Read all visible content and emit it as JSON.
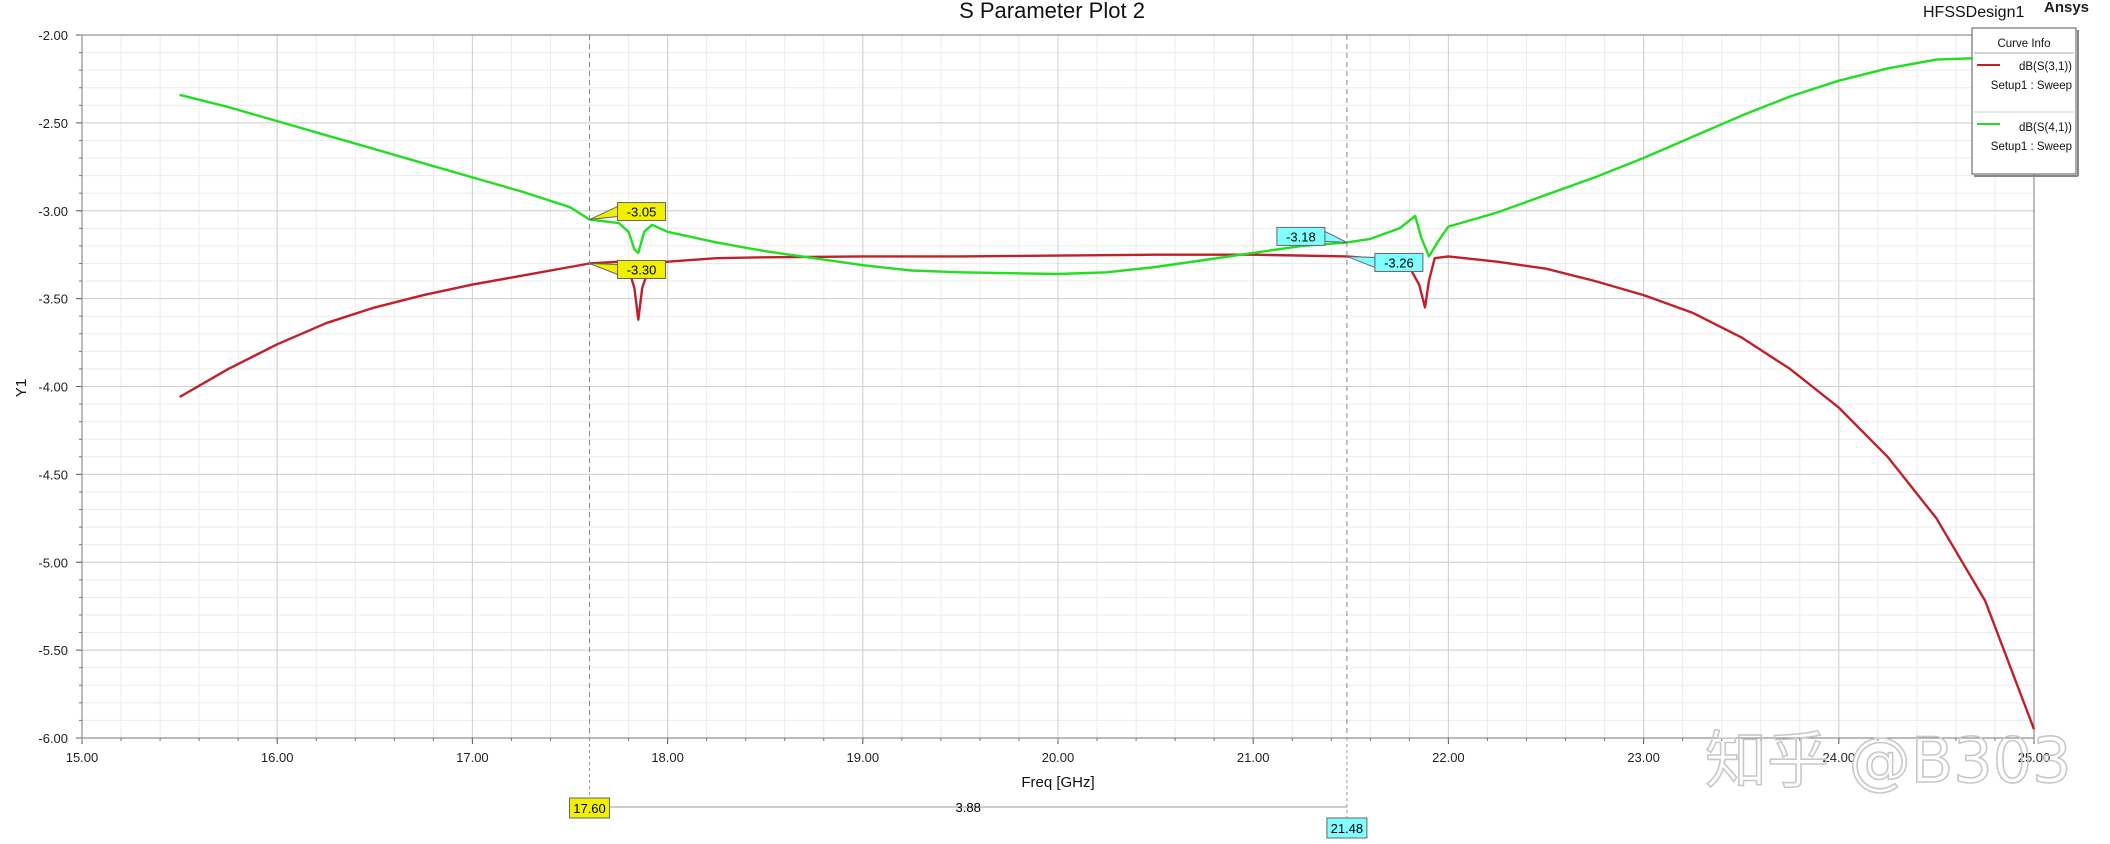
{
  "header": {
    "project": "HFSSDesign1",
    "brand": "Ansys"
  },
  "watermark": "知乎 @B303",
  "legend": {
    "title": "Curve Info",
    "entries": [
      {
        "line1": "dB(S(3,1))",
        "line2": "Setup1 : Sweep",
        "color": "#c0202a"
      },
      {
        "line1": "dB(S(4,1))",
        "line2": "Setup1 : Sweep",
        "color": "#22dd22"
      }
    ]
  },
  "chart_data": {
    "type": "line",
    "title": "S Parameter Plot 2",
    "xlabel": "Freq [GHz]",
    "ylabel": "Y1",
    "xlim": [
      15.0,
      25.0
    ],
    "ylim": [
      -6.0,
      -2.0
    ],
    "x_ticks": [
      "15.00",
      "16.00",
      "17.00",
      "18.00",
      "19.00",
      "20.00",
      "21.00",
      "22.00",
      "23.00",
      "24.00",
      "25.00"
    ],
    "y_ticks": [
      "-2.00",
      "-2.50",
      "-3.00",
      "-3.50",
      "-4.00",
      "-4.50",
      "-5.00",
      "-5.50",
      "-6.00"
    ],
    "grid": true,
    "legend_position": "top-right",
    "series": [
      {
        "name": "dB(S(3,1))",
        "color": "#c0202a",
        "points": [
          [
            15.5,
            -4.06
          ],
          [
            15.75,
            -3.9
          ],
          [
            16.0,
            -3.76
          ],
          [
            16.25,
            -3.64
          ],
          [
            16.5,
            -3.55
          ],
          [
            16.75,
            -3.48
          ],
          [
            17.0,
            -3.42
          ],
          [
            17.25,
            -3.37
          ],
          [
            17.5,
            -3.32
          ],
          [
            17.6,
            -3.3
          ],
          [
            17.75,
            -3.29
          ],
          [
            17.8,
            -3.33
          ],
          [
            17.83,
            -3.44
          ],
          [
            17.85,
            -3.62
          ],
          [
            17.87,
            -3.44
          ],
          [
            17.9,
            -3.34
          ],
          [
            17.95,
            -3.3
          ],
          [
            18.0,
            -3.29
          ],
          [
            18.25,
            -3.27
          ],
          [
            18.5,
            -3.265
          ],
          [
            19.0,
            -3.26
          ],
          [
            19.5,
            -3.26
          ],
          [
            20.0,
            -3.255
          ],
          [
            20.5,
            -3.25
          ],
          [
            21.0,
            -3.25
          ],
          [
            21.48,
            -3.26
          ],
          [
            21.7,
            -3.28
          ],
          [
            21.8,
            -3.32
          ],
          [
            21.85,
            -3.42
          ],
          [
            21.88,
            -3.55
          ],
          [
            21.9,
            -3.4
          ],
          [
            21.93,
            -3.27
          ],
          [
            22.0,
            -3.26
          ],
          [
            22.25,
            -3.29
          ],
          [
            22.5,
            -3.33
          ],
          [
            22.75,
            -3.4
          ],
          [
            23.0,
            -3.48
          ],
          [
            23.25,
            -3.58
          ],
          [
            23.5,
            -3.72
          ],
          [
            23.75,
            -3.9
          ],
          [
            24.0,
            -4.12
          ],
          [
            24.25,
            -4.4
          ],
          [
            24.5,
            -4.75
          ],
          [
            24.75,
            -5.22
          ],
          [
            25.0,
            -5.95
          ]
        ]
      },
      {
        "name": "dB(S(4,1))",
        "color": "#22dd22",
        "points": [
          [
            15.5,
            -2.34
          ],
          [
            15.75,
            -2.41
          ],
          [
            16.0,
            -2.49
          ],
          [
            16.25,
            -2.57
          ],
          [
            16.5,
            -2.65
          ],
          [
            16.75,
            -2.73
          ],
          [
            17.0,
            -2.81
          ],
          [
            17.25,
            -2.89
          ],
          [
            17.5,
            -2.98
          ],
          [
            17.6,
            -3.05
          ],
          [
            17.75,
            -3.07
          ],
          [
            17.8,
            -3.12
          ],
          [
            17.83,
            -3.22
          ],
          [
            17.85,
            -3.24
          ],
          [
            17.88,
            -3.12
          ],
          [
            17.92,
            -3.08
          ],
          [
            18.0,
            -3.12
          ],
          [
            18.25,
            -3.18
          ],
          [
            18.5,
            -3.23
          ],
          [
            18.75,
            -3.27
          ],
          [
            19.0,
            -3.31
          ],
          [
            19.25,
            -3.34
          ],
          [
            19.5,
            -3.35
          ],
          [
            20.0,
            -3.36
          ],
          [
            20.25,
            -3.35
          ],
          [
            20.5,
            -3.32
          ],
          [
            20.75,
            -3.28
          ],
          [
            21.0,
            -3.24
          ],
          [
            21.25,
            -3.2
          ],
          [
            21.48,
            -3.18
          ],
          [
            21.6,
            -3.16
          ],
          [
            21.75,
            -3.1
          ],
          [
            21.83,
            -3.03
          ],
          [
            21.86,
            -3.15
          ],
          [
            21.9,
            -3.26
          ],
          [
            21.95,
            -3.17
          ],
          [
            22.0,
            -3.09
          ],
          [
            22.25,
            -3.01
          ],
          [
            22.5,
            -2.91
          ],
          [
            22.75,
            -2.81
          ],
          [
            23.0,
            -2.7
          ],
          [
            23.25,
            -2.58
          ],
          [
            23.5,
            -2.46
          ],
          [
            23.75,
            -2.35
          ],
          [
            24.0,
            -2.26
          ],
          [
            24.25,
            -2.19
          ],
          [
            24.5,
            -2.14
          ],
          [
            24.75,
            -2.13
          ],
          [
            25.0,
            -2.12
          ]
        ]
      }
    ],
    "markers": [
      {
        "label": "-3.05",
        "x": 17.6,
        "y": -3.05,
        "color": "#f0f000"
      },
      {
        "label": "-3.30",
        "x": 17.6,
        "y": -3.3,
        "color": "#f0f000"
      },
      {
        "label": "-3.18",
        "x": 21.48,
        "y": -3.18,
        "color": "#7fffff"
      },
      {
        "label": "-3.26",
        "x": 21.48,
        "y": -3.26,
        "color": "#7fffff"
      }
    ],
    "x_markers": [
      {
        "label": "17.60",
        "x": 17.6,
        "color": "#f0f000"
      },
      {
        "label": "21.48",
        "x": 21.48,
        "color": "#7fffff"
      }
    ],
    "delta_label": "3.88"
  }
}
